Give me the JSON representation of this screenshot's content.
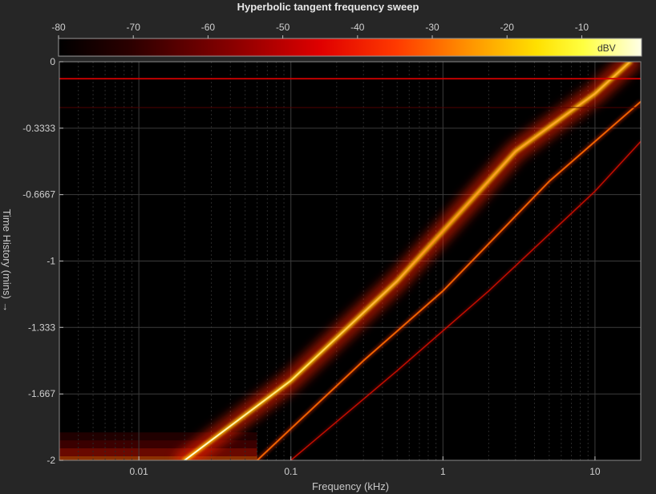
{
  "chart_data": {
    "type": "heatmap",
    "title": "Hyperbolic tangent frequency sweep",
    "xlabel": "Frequency (kHz)",
    "ylabel": "Time History (mins) →",
    "x_scale": "log",
    "xlim": [
      0.003,
      20
    ],
    "ylim": [
      -2,
      0
    ],
    "x_ticks": [
      {
        "value": 0.01,
        "label": "0.01"
      },
      {
        "value": 0.1,
        "label": "0.1"
      },
      {
        "value": 1,
        "label": "1"
      },
      {
        "value": 10,
        "label": "10"
      }
    ],
    "y_ticks": [
      {
        "value": 0,
        "label": "0"
      },
      {
        "value": -0.3333,
        "label": "-0.3333"
      },
      {
        "value": -0.6667,
        "label": "-0.6667"
      },
      {
        "value": -1,
        "label": "-1"
      },
      {
        "value": -1.333,
        "label": "-1.333"
      },
      {
        "value": -1.667,
        "label": "-1.667"
      },
      {
        "value": -2,
        "label": "-2"
      }
    ],
    "grid": true,
    "colorbar": {
      "colormap": "hot",
      "unit": "dBV",
      "range": [
        -80,
        -2
      ],
      "ticks": [
        -80,
        -70,
        -60,
        -50,
        -40,
        -30,
        -20,
        -10
      ],
      "tick_labels": [
        "-80",
        "-70",
        "-60",
        "-50",
        "-40",
        "-30",
        "-20",
        "-10"
      ],
      "placement": "top"
    },
    "traces": [
      {
        "kind": "fundamental",
        "level_dbv": -10,
        "points": [
          [
            0.02,
            -2
          ],
          [
            0.1,
            -1.6
          ],
          [
            0.5,
            -1.1
          ],
          [
            1,
            -0.85
          ],
          [
            3,
            -0.45
          ],
          [
            10,
            -0.16
          ],
          [
            17,
            0
          ]
        ]
      },
      {
        "kind": "harmonic",
        "level_dbv": -40,
        "points": [
          [
            0.06,
            -2
          ],
          [
            0.3,
            -1.5
          ],
          [
            1,
            -1.15
          ],
          [
            5,
            -0.6
          ],
          [
            20,
            -0.2
          ]
        ]
      },
      {
        "kind": "harmonic",
        "level_dbv": -55,
        "points": [
          [
            0.1,
            -2
          ],
          [
            0.5,
            -1.55
          ],
          [
            2,
            -1.15
          ],
          [
            10,
            -0.65
          ],
          [
            20,
            -0.4
          ]
        ]
      },
      {
        "kind": "ridge-horizontal",
        "level_dbv": -45,
        "time": -0.085
      },
      {
        "kind": "ridge-horizontal",
        "level_dbv": -70,
        "time": -0.23
      }
    ]
  }
}
